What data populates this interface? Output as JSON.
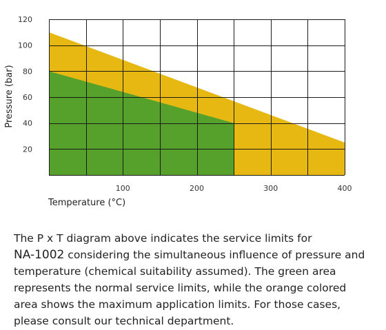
{
  "chart_data": {
    "type": "area",
    "xlabel": "Temperature (°C)",
    "ylabel": "Pressure (bar)",
    "xlim": [
      0,
      400
    ],
    "ylim": [
      0,
      120
    ],
    "x_ticks": [
      100,
      200,
      300,
      400
    ],
    "y_ticks": [
      20,
      40,
      60,
      80,
      100,
      120
    ],
    "grid": true,
    "series": [
      {
        "color": "#e8b812",
        "points": [
          [
            0,
            110
          ],
          [
            400,
            25
          ],
          [
            400,
            0
          ],
          [
            0,
            0
          ]
        ]
      },
      {
        "color": "#56a12b",
        "points": [
          [
            0,
            80
          ],
          [
            250,
            40
          ],
          [
            250,
            0
          ],
          [
            0,
            0
          ]
        ]
      }
    ]
  },
  "caption": {
    "part1": "The P x T diagram above indicates the service  limits for",
    "product": "NA-1002",
    "part2": " considering the simultaneous influence of pressure and temperature (chemical suitability assumed). The green area represents the normal service limits, while the orange colored area shows the maximum application limits. For those cases, please consult our technical department."
  }
}
